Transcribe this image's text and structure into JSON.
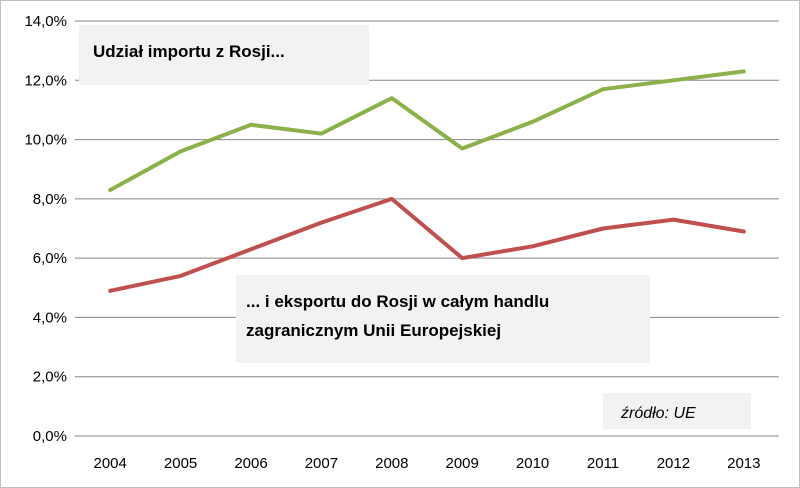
{
  "chart_data": {
    "type": "line",
    "categories": [
      "2004",
      "2005",
      "2006",
      "2007",
      "2008",
      "2009",
      "2010",
      "2011",
      "2012",
      "2013"
    ],
    "series": [
      {
        "key": "import",
        "color": "#8db14a",
        "values": [
          8.3,
          9.6,
          10.5,
          10.2,
          11.4,
          9.7,
          10.6,
          11.7,
          12.0,
          12.3
        ]
      },
      {
        "key": "export",
        "color": "#c0504d",
        "values": [
          4.9,
          5.4,
          6.3,
          7.2,
          8.0,
          6.0,
          6.4,
          7.0,
          7.3,
          6.9
        ]
      }
    ],
    "ylim": [
      0,
      14
    ],
    "y_ticks": [
      0,
      2,
      4,
      6,
      8,
      10,
      12,
      14
    ],
    "y_tick_labels": [
      "0,0%",
      "2,0%",
      "4,0%",
      "6,0%",
      "8,0%",
      "10,0%",
      "12,0%",
      "14,0%"
    ],
    "grid": "horizontal",
    "annotations": {
      "import_label": "Udział importu z Rosji...",
      "export_label_line1": "... i eksportu do Rosji w całym handlu",
      "export_label_line2": "zagranicznym Unii Europejskiej",
      "source": "źródło: UE"
    }
  }
}
